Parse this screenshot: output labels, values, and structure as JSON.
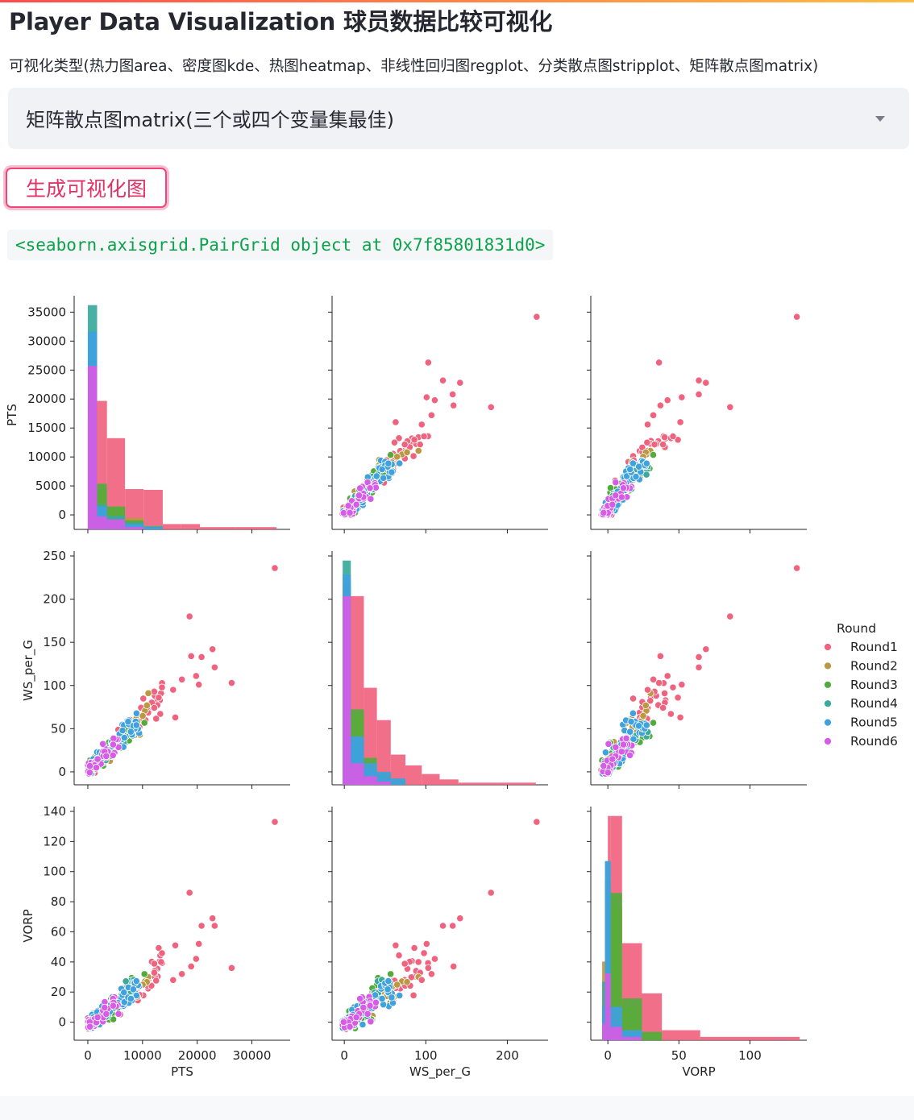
{
  "app": {
    "title": "Player Data Visualization 球员数据比较可视化",
    "select_label": "可视化类型(热力图area、密度图kde、热图heatmap、非线性回归图regplot、分类散点图stripplot、矩阵散点图matrix)",
    "select_value": "矩阵散点图matrix(三个或四个变量集最佳)",
    "button_label": "生成可视化图",
    "code_output": "<seaborn.axisgrid.PairGrid object at 0x7f85801831d0>",
    "accent_color": "#ff4b4b"
  },
  "chart_data": {
    "type": "scatter",
    "kind": "pairplot",
    "variables": [
      "PTS",
      "WS_per_G",
      "VORP"
    ],
    "hue_title": "Round",
    "series": [
      {
        "name": "Round1",
        "color": "#f0637f"
      },
      {
        "name": "Round2",
        "color": "#bb9842"
      },
      {
        "name": "Round3",
        "color": "#52ab3c"
      },
      {
        "name": "Round4",
        "color": "#3ba99c"
      },
      {
        "name": "Round5",
        "color": "#3fa1de"
      },
      {
        "name": "Round6",
        "color": "#d65be6"
      }
    ],
    "axes": {
      "PTS": {
        "label": "PTS",
        "range": [
          -2500,
          37000
        ],
        "ticks": [
          "0",
          "5000",
          "10000",
          "15000",
          "20000",
          "25000",
          "30000",
          "35000"
        ],
        "tick_values": [
          0,
          5000,
          10000,
          15000,
          20000,
          25000,
          30000,
          35000
        ],
        "x_ticks": [
          "0",
          "10000",
          "20000",
          "30000"
        ],
        "x_tick_values": [
          0,
          10000,
          20000,
          30000
        ]
      },
      "WS_per_G": {
        "label": "WS_per_G",
        "range": [
          -15,
          250
        ],
        "ticks": [
          "0",
          "50",
          "100",
          "150",
          "200",
          "250"
        ],
        "tick_values": [
          0,
          50,
          100,
          150,
          200,
          250
        ],
        "x_ticks": [
          "0",
          "100",
          "200"
        ],
        "x_tick_values": [
          0,
          100,
          200
        ]
      },
      "VORP": {
        "label": "VORP",
        "range": [
          -12,
          140
        ],
        "ticks": [
          "0",
          "20",
          "40",
          "60",
          "80",
          "100",
          "120",
          "140"
        ],
        "tick_values": [
          0,
          20,
          40,
          60,
          80,
          100,
          120,
          140
        ],
        "x_ticks": [
          "0",
          "50",
          "100"
        ],
        "x_tick_values": [
          0,
          50,
          100
        ]
      }
    },
    "highlight_points_round1": [
      {
        "PTS": 34200,
        "WS_per_G": 236,
        "VORP": 133
      },
      {
        "PTS": 26300,
        "WS_per_G": 103,
        "VORP": 36
      },
      {
        "PTS": 22800,
        "WS_per_G": 142,
        "VORP": 69
      },
      {
        "PTS": 23200,
        "WS_per_G": 121,
        "VORP": 64
      },
      {
        "PTS": 18600,
        "WS_per_G": 180,
        "VORP": 86
      },
      {
        "PTS": 20300,
        "WS_per_G": 101,
        "VORP": 52
      },
      {
        "PTS": 18900,
        "WS_per_G": 134,
        "VORP": 37
      },
      {
        "PTS": 20800,
        "WS_per_G": 133,
        "VORP": 64
      },
      {
        "PTS": 17200,
        "WS_per_G": 107,
        "VORP": 32
      },
      {
        "PTS": 16000,
        "WS_per_G": 63,
        "VORP": 51
      },
      {
        "PTS": 15600,
        "WS_per_G": 95,
        "VORP": 28
      },
      {
        "PTS": 19800,
        "WS_per_G": 111,
        "VORP": 42
      }
    ],
    "histograms": {
      "PTS": {
        "edges": [
          0,
          1700,
          3500,
          6800,
          10200,
          13700,
          17000,
          20500,
          27000,
          34500
        ],
        "counts": {
          "Round1": [
            15000,
            16900,
            12000,
            5300,
            5200,
            700,
            700,
            300,
            300
          ],
          "Round2": [
            17000,
            5200,
            3000,
            1500,
            500,
            0,
            0,
            0,
            0
          ],
          "Round3": [
            20000,
            6000,
            3000,
            1200,
            400,
            0,
            0,
            0,
            0
          ],
          "Round4": [
            29500,
            3300,
            1800,
            900,
            300,
            0,
            0,
            0,
            0
          ],
          "Round5": [
            26000,
            3000,
            1300,
            700,
            400,
            0,
            0,
            0,
            0
          ],
          "Round6": [
            21500,
            1700,
            1300,
            300,
            0,
            0,
            0,
            0,
            0
          ]
        }
      },
      "WS_per_G": {
        "edges": [
          -2,
          8,
          24,
          40,
          57,
          75,
          95,
          117,
          140,
          188,
          235
        ],
        "counts": {
          "Round1": [
            0,
            175,
            90,
            60,
            28,
            18,
            10,
            5,
            2,
            2
          ],
          "Round2": [
            170,
            65,
            20,
            12,
            4,
            0,
            0,
            0,
            0,
            0
          ],
          "Round3": [
            185,
            70,
            25,
            10,
            4,
            0,
            0,
            0,
            0,
            0
          ],
          "Round4": [
            208,
            40,
            15,
            5,
            2,
            0,
            0,
            0,
            0,
            0
          ],
          "Round5": [
            195,
            45,
            20,
            12,
            6,
            0,
            0,
            0,
            0,
            0
          ],
          "Round6": [
            175,
            20,
            8,
            3,
            0,
            0,
            0,
            0,
            0,
            0
          ]
        }
      },
      "VORP": {
        "edges": [
          -4,
          -2,
          0,
          2,
          10,
          24,
          38,
          65,
          125,
          135
        ],
        "counts": {
          "Round1": [
            0,
            0,
            134,
            134,
            58,
            28,
            6,
            2,
            2
          ],
          "Round2": [
            47,
            95,
            95,
            80,
            20,
            4,
            0,
            0,
            0
          ],
          "Round3": [
            20,
            95,
            95,
            88,
            25,
            5,
            0,
            0,
            0
          ],
          "Round4": [
            35,
            107,
            107,
            10,
            4,
            0,
            0,
            0,
            0
          ],
          "Round5": [
            20,
            107,
            107,
            20,
            6,
            0,
            0,
            0,
            0
          ],
          "Round6": [
            10,
            40,
            40,
            8,
            2,
            0,
            0,
            0,
            0
          ]
        }
      }
    }
  }
}
